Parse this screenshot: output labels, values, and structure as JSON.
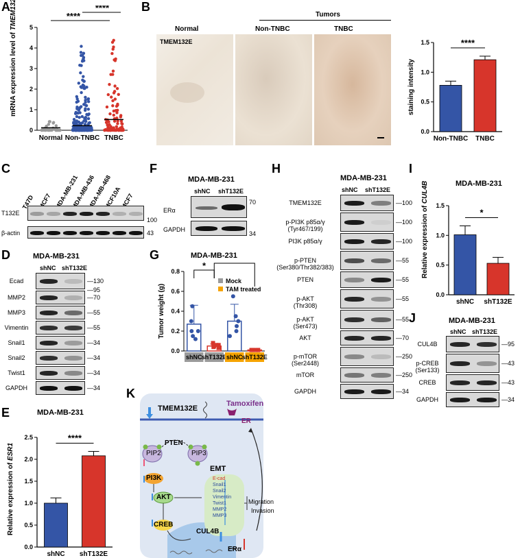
{
  "panels": {
    "A": {
      "label": "A",
      "ylabel_prefix": "mRNA expression level of ",
      "ylabel_gene": "TMEM132E",
      "sig_top": "****",
      "sig_main": "****",
      "chart_data": {
        "type": "scatter",
        "categories": [
          "Normal",
          "Non-TNBC",
          "TNBC"
        ],
        "ylim": [
          0,
          5
        ],
        "yticks": [
          "0",
          "1",
          "2",
          "3",
          "4",
          "5"
        ],
        "means": [
          0.12,
          0.22,
          0.52
        ]
      }
    },
    "B": {
      "label": "B",
      "header": "Tumors",
      "col_labels": [
        "Normal",
        "Non-TNBC",
        "TNBC"
      ],
      "stain_label": "TMEM132E",
      "chart_data": {
        "type": "bar",
        "categories": [
          "Non-TNBC",
          "TNBC"
        ],
        "values": [
          0.78,
          1.21
        ],
        "errors": [
          0.07,
          0.06
        ],
        "ylabel": "staining intensity",
        "ylim": [
          0,
          1.5
        ],
        "yticks": [
          "0.0",
          "0.5",
          "1.0",
          "1.5"
        ],
        "sig": "****"
      }
    },
    "C": {
      "label": "C",
      "lanes": [
        "T47D",
        "MCF7",
        "MDA-MB-231",
        "MDA-MB-436",
        "MDA-MB-468",
        "MCF10A",
        "MCF7"
      ],
      "rows": [
        {
          "name": "T132E",
          "kda": "100"
        },
        {
          "name": "β-actin",
          "kda": "43"
        }
      ]
    },
    "D": {
      "label": "D",
      "title": "MDA-MB-231",
      "lanes": [
        "shNC",
        "shT132E"
      ],
      "rows": [
        {
          "name": "Ecad",
          "kda": "130"
        },
        {
          "name": "",
          "kda": "95"
        },
        {
          "name": "MMP2",
          "kda": "70"
        },
        {
          "name": "MMP3",
          "kda": "55"
        },
        {
          "name": "Vimentin",
          "kda": "55"
        },
        {
          "name": "Snail1",
          "kda": "34"
        },
        {
          "name": "Snail2",
          "kda": "34"
        },
        {
          "name": "Twist1",
          "kda": "34"
        },
        {
          "name": "GAPDH",
          "kda": "34"
        }
      ]
    },
    "E": {
      "label": "E",
      "title": "MDA-MB-231",
      "ylabel_prefix": "Relative expression of ",
      "ylabel_gene": "ESR1",
      "chart_data": {
        "type": "bar",
        "categories": [
          "shNC",
          "shT132E"
        ],
        "values": [
          1.0,
          2.08
        ],
        "errors": [
          0.12,
          0.1
        ],
        "ylim": [
          0,
          2.5
        ],
        "yticks": [
          "0.0",
          "0.5",
          "1.0",
          "1.5",
          "2.0",
          "2.5"
        ],
        "sig": "****"
      }
    },
    "F": {
      "label": "F",
      "title": "MDA-MB-231",
      "lanes": [
        "shNC",
        "shT132E"
      ],
      "rows": [
        {
          "name": "ERα",
          "kda": "70"
        },
        {
          "name": "GAPDH",
          "kda": "34"
        }
      ]
    },
    "G": {
      "label": "G",
      "title": "MDA-MB-231",
      "legend": [
        "Mock",
        "TAM treated"
      ],
      "sig1": "*",
      "sig2": "**",
      "chart_data": {
        "type": "bar",
        "categories": [
          "shNC",
          "shT132E",
          "shNC",
          "shT132E"
        ],
        "values": [
          0.27,
          0.05,
          0.3,
          0.01
        ],
        "errors": [
          0.19,
          0.02,
          0.17,
          0.005
        ],
        "ylabel": "Tumor weight (g)",
        "ylim": [
          0,
          0.8
        ],
        "yticks": [
          "0.0",
          "0.2",
          "0.4",
          "0.6",
          "0.8"
        ],
        "groups": [
          "Mock",
          "Mock",
          "TAM treated",
          "TAM treated"
        ]
      }
    },
    "H": {
      "label": "H",
      "title": "MDA-MB-231",
      "lanes": [
        "shNC",
        "shT132E"
      ],
      "rows": [
        {
          "name": "TMEM132E",
          "kda": "100"
        },
        {
          "name": "p-PI3K p85α/γ\n(Tyr467/199)",
          "kda": "100"
        },
        {
          "name": "PI3K p85α/γ",
          "kda": "100"
        },
        {
          "name": "p-PTEN\n(Ser380/Thr382/383)",
          "kda": "55"
        },
        {
          "name": "PTEN",
          "kda": "55"
        },
        {
          "name": "p-AKT\n(Thr308)",
          "kda": "55"
        },
        {
          "name": "p-AKT\n(Ser473)",
          "kda": "55"
        },
        {
          "name": "AKT",
          "kda": "70"
        },
        {
          "name": "p-mTOR\n(Ser2448)",
          "kda": "250"
        },
        {
          "name": "mTOR",
          "kda": "250"
        },
        {
          "name": "GAPDH",
          "kda": "34"
        }
      ]
    },
    "I": {
      "label": "I",
      "title": "MDA-MB-231",
      "ylabel_prefix": "Relative expression of ",
      "ylabel_gene": "CUL4B",
      "chart_data": {
        "type": "bar",
        "categories": [
          "shNC",
          "shT132E"
        ],
        "values": [
          1.01,
          0.53
        ],
        "errors": [
          0.15,
          0.1
        ],
        "ylim": [
          0,
          1.5
        ],
        "yticks": [
          "0.0",
          "0.5",
          "1.0",
          "1.5"
        ],
        "sig": "*"
      }
    },
    "J": {
      "label": "J",
      "title": "MDA-MB-231",
      "lanes": [
        "shNC",
        "shT132E"
      ],
      "rows": [
        {
          "name": "CUL4B",
          "kda": "95"
        },
        {
          "name": "p-CREB\n(Ser133)",
          "kda": "43"
        },
        {
          "name": "CREB",
          "kda": "43"
        },
        {
          "name": "GAPDH",
          "kda": "34"
        }
      ]
    },
    "K": {
      "label": "K",
      "nodes": {
        "tmem": "TMEM132E",
        "tam": "Tamoxifen",
        "er": "ER",
        "pten": "PTEN",
        "pip2": "PIP2",
        "pip3": "PIP3",
        "pi3k": "PI3K",
        "akt": "AKT",
        "creb": "CREB",
        "emt": "EMT",
        "cul4b": "CUL4B",
        "era": "ERα",
        "migration": "Migration",
        "invasion": "Invasion"
      },
      "emt_list": [
        "E-cad",
        "Snail1",
        "Snail2",
        "Vimentin",
        "Twist1",
        "MMP2",
        "MMP3"
      ]
    }
  },
  "colors": {
    "blue": "#3455a6",
    "red": "#d7352b",
    "grey": "#9a9a9a",
    "orange": "#f5a300",
    "cellbg": "#dfe7f3"
  }
}
